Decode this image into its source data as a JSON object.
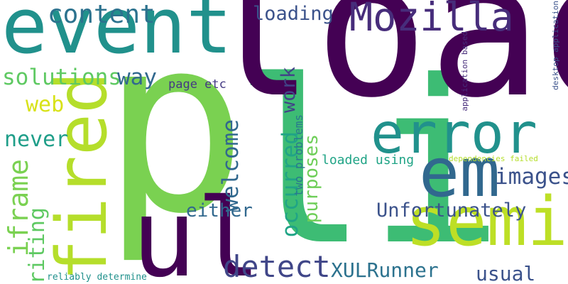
{
  "words": {
    "load": "load",
    "event": "event",
    "content": "content",
    "mozilla": "Mozilla",
    "loading": "loading",
    "error": "error",
    "em": "em",
    "solutions": "solutions",
    "way": "way",
    "page_etc": "page etc",
    "web": "web",
    "never": "never",
    "p": "p",
    "li": "li",
    "ul": "ul",
    "semi": "semi",
    "images": "images",
    "either": "either",
    "unfortunately": "Unfortunately",
    "detect": "detect",
    "xulrunner": "XULRunner",
    "usual": "usual",
    "loaded_using": "loaded using",
    "dependencies_failed": "dependencies failed",
    "reliably_determine": "reliably determine",
    "fired": "fired",
    "iframe": "iframe",
    "writing": "writing",
    "work": "work",
    "occurred": "occurred",
    "welcome": "welcome",
    "two_problems": "two problems",
    "purposes": "purposes",
    "application_based": "application based",
    "desktop_application": "desktop application"
  },
  "colors": {
    "load": "#440154",
    "event": "#21918c",
    "content": "#2c728e",
    "mozilla": "#472d7b",
    "loading": "#3b528b",
    "error": "#21918c",
    "em": "#31688e",
    "solutions": "#5ec962",
    "way": "#31688e",
    "page_etc": "#443983",
    "web": "#d8e219",
    "never": "#1f9e89",
    "p": "#7ad151",
    "li": "#3dbc74",
    "ul": "#440154",
    "semi": "#bddf26",
    "images": "#3b528b",
    "either": "#31688e",
    "unfortunately": "#3b528b",
    "detect": "#404688",
    "xulrunner": "#2c728e",
    "usual": "#3b528b",
    "loaded_using": "#20a486",
    "dependencies_failed": "#b5de2b",
    "reliably_determine": "#21918c",
    "fired": "#b5de2b",
    "iframe": "#7ad151",
    "writing": "#5ec962",
    "work": "#414487",
    "occurred": "#20a486",
    "welcome": "#31688e",
    "two_problems": "#2a788e",
    "purposes": "#6ece58",
    "application_based": "#472d7b",
    "desktop_application": "#3b528b"
  }
}
